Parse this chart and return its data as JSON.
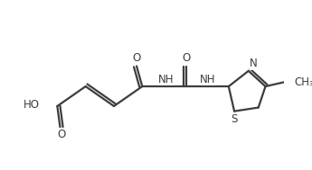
{
  "bg_color": "#ffffff",
  "line_color": "#3d3d3d",
  "line_width": 1.6,
  "font_size": 8.5,
  "figsize": [
    3.45,
    1.89
  ],
  "dpi": 100,
  "xlim": [
    0,
    10
  ],
  "ylim": [
    0,
    5.5
  ]
}
